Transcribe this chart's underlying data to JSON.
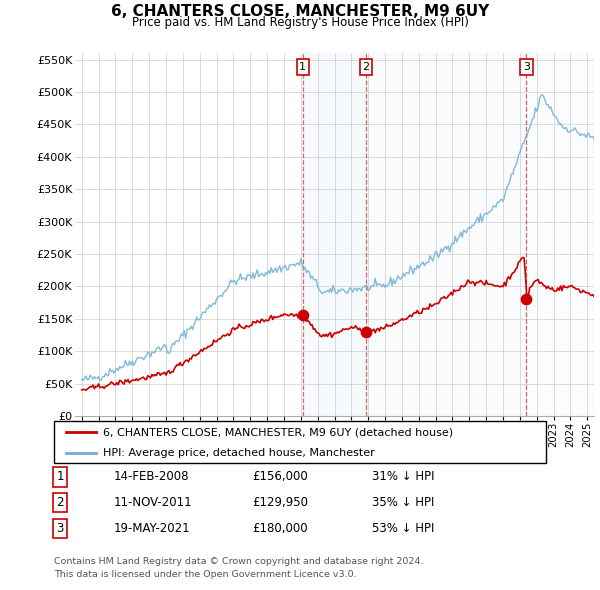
{
  "title": "6, CHANTERS CLOSE, MANCHESTER, M9 6UY",
  "subtitle": "Price paid vs. HM Land Registry's House Price Index (HPI)",
  "legend_line1": "6, CHANTERS CLOSE, MANCHESTER, M9 6UY (detached house)",
  "legend_line2": "HPI: Average price, detached house, Manchester",
  "footer1": "Contains HM Land Registry data © Crown copyright and database right 2024.",
  "footer2": "This data is licensed under the Open Government Licence v3.0.",
  "transactions": [
    {
      "num": 1,
      "date": "14-FEB-2008",
      "price": "£156,000",
      "pct": "31% ↓ HPI",
      "year": 2008.12
    },
    {
      "num": 2,
      "date": "11-NOV-2011",
      "price": "£129,950",
      "pct": "35% ↓ HPI",
      "year": 2011.87
    },
    {
      "num": 3,
      "date": "19-MAY-2021",
      "price": "£180,000",
      "pct": "53% ↓ HPI",
      "year": 2021.38
    }
  ],
  "sale_years": [
    2008.12,
    2011.87,
    2021.38
  ],
  "sale_prices": [
    156000,
    129950,
    180000
  ],
  "hpi_color": "#6baed6",
  "price_color": "#cc0000",
  "ylim": [
    0,
    560000
  ],
  "yticks": [
    0,
    50000,
    100000,
    150000,
    200000,
    250000,
    300000,
    350000,
    400000,
    450000,
    500000,
    550000
  ],
  "xlim_left": 1994.6,
  "xlim_right": 2025.4
}
